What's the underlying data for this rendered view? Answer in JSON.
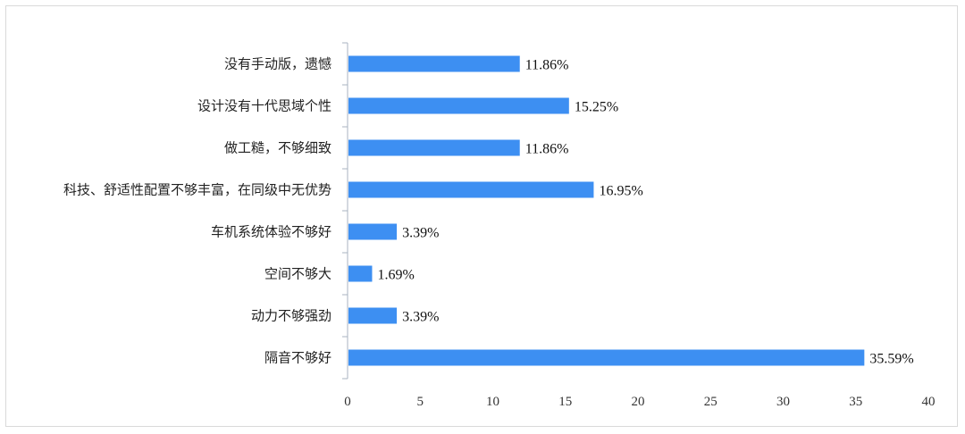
{
  "chart_data": {
    "type": "bar",
    "orientation": "horizontal",
    "categories": [
      "没有手动版，遗憾",
      "设计没有十代思域个性",
      "做工糙，不够细致",
      "科技、舒适性配置不够丰富，在同级中无优势",
      "车机系统体验不够好",
      "空间不够大",
      "动力不够强劲",
      "隔音不够好"
    ],
    "values": [
      11.86,
      15.25,
      11.86,
      16.95,
      3.39,
      1.69,
      3.39,
      35.59
    ],
    "value_labels": [
      "11.86%",
      "15.25%",
      "11.86%",
      "16.95%",
      "3.39%",
      "1.69%",
      "3.39%",
      "35.59%"
    ],
    "xlim": [
      0,
      40
    ],
    "x_ticks": [
      "0",
      "5",
      "10",
      "15",
      "20",
      "25",
      "30",
      "35",
      "40"
    ],
    "bar_color": "#3d8ff2",
    "grid": false,
    "legend": "none"
  }
}
